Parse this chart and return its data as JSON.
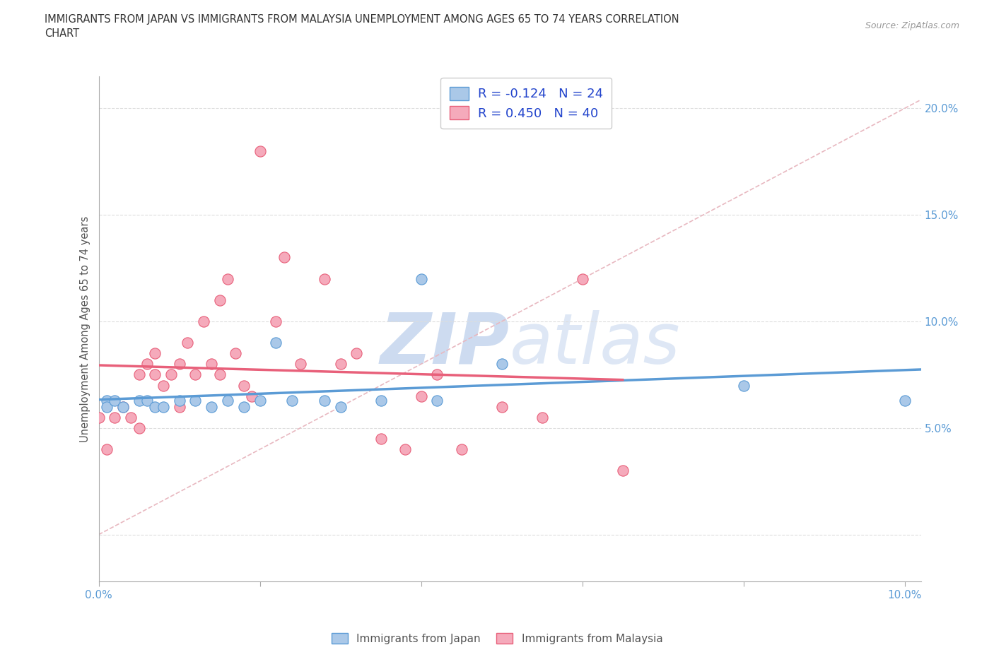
{
  "title_line1": "IMMIGRANTS FROM JAPAN VS IMMIGRANTS FROM MALAYSIA UNEMPLOYMENT AMONG AGES 65 TO 74 YEARS CORRELATION",
  "title_line2": "CHART",
  "source_text": "Source: ZipAtlas.com",
  "ylabel": "Unemployment Among Ages 65 to 74 years",
  "xlim": [
    0.0,
    0.102
  ],
  "ylim": [
    -0.022,
    0.215
  ],
  "x_ticks": [
    0.0,
    0.02,
    0.04,
    0.06,
    0.08,
    0.1
  ],
  "y_ticks": [
    0.0,
    0.05,
    0.1,
    0.15,
    0.2
  ],
  "japan_color": "#aac8e8",
  "malaysia_color": "#f5aabb",
  "japan_R": -0.124,
  "japan_N": 24,
  "malaysia_R": 0.45,
  "malaysia_N": 40,
  "japan_line_color": "#5b9bd5",
  "malaysia_line_color": "#e8607a",
  "diag_line_color": "#e8b8c0",
  "watermark_color": "#d0dff0",
  "background_color": "#ffffff",
  "japan_scatter_x": [
    0.001,
    0.001,
    0.002,
    0.003,
    0.005,
    0.006,
    0.007,
    0.008,
    0.01,
    0.012,
    0.014,
    0.016,
    0.018,
    0.02,
    0.022,
    0.024,
    0.028,
    0.03,
    0.035,
    0.04,
    0.042,
    0.05,
    0.08,
    0.1
  ],
  "japan_scatter_y": [
    0.063,
    0.06,
    0.063,
    0.06,
    0.063,
    0.063,
    0.06,
    0.06,
    0.063,
    0.063,
    0.06,
    0.063,
    0.06,
    0.063,
    0.09,
    0.063,
    0.063,
    0.06,
    0.063,
    0.12,
    0.063,
    0.08,
    0.07,
    0.063
  ],
  "malaysia_scatter_x": [
    0.0,
    0.001,
    0.002,
    0.003,
    0.004,
    0.005,
    0.005,
    0.006,
    0.007,
    0.007,
    0.008,
    0.009,
    0.01,
    0.01,
    0.011,
    0.012,
    0.013,
    0.014,
    0.015,
    0.015,
    0.016,
    0.017,
    0.018,
    0.019,
    0.02,
    0.022,
    0.023,
    0.025,
    0.028,
    0.03,
    0.032,
    0.035,
    0.038,
    0.04,
    0.042,
    0.045,
    0.05,
    0.055,
    0.06,
    0.065
  ],
  "malaysia_scatter_y": [
    0.055,
    0.04,
    0.055,
    0.06,
    0.055,
    0.075,
    0.05,
    0.08,
    0.075,
    0.085,
    0.07,
    0.075,
    0.08,
    0.06,
    0.09,
    0.075,
    0.1,
    0.08,
    0.11,
    0.075,
    0.12,
    0.085,
    0.07,
    0.065,
    0.18,
    0.1,
    0.13,
    0.08,
    0.12,
    0.08,
    0.085,
    0.045,
    0.04,
    0.065,
    0.075,
    0.04,
    0.06,
    0.055,
    0.12,
    0.03
  ],
  "legend_color": "#2244cc",
  "axis_tick_color": "#5b9bd5",
  "axis_label_color": "#555555",
  "grid_color": "#dddddd",
  "spine_color": "#aaaaaa"
}
